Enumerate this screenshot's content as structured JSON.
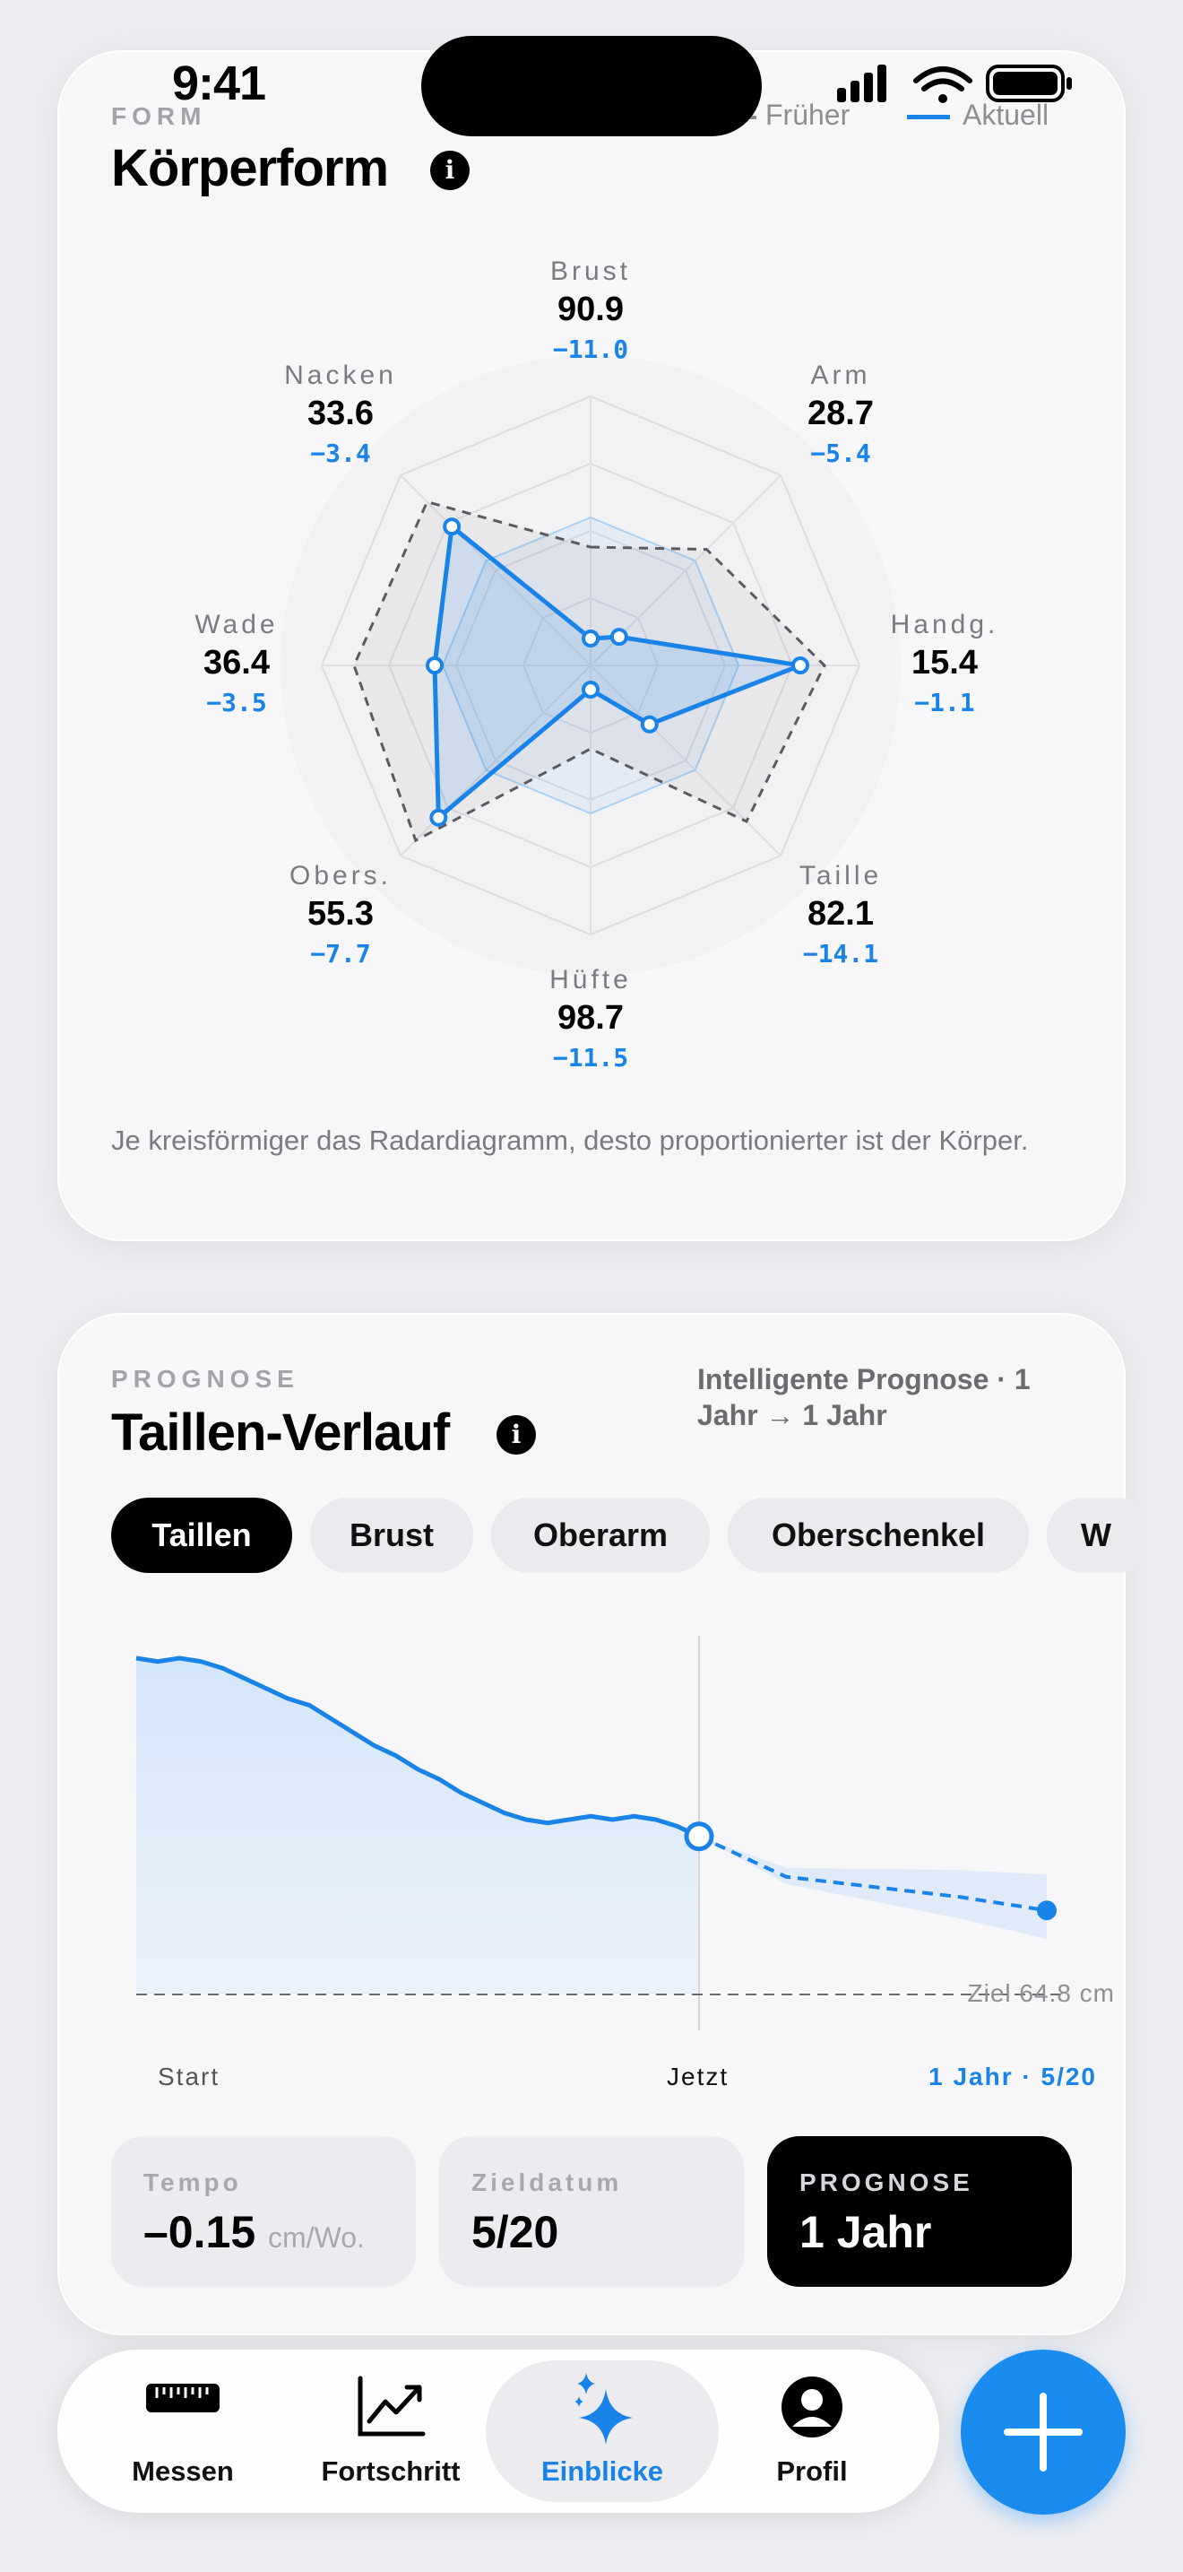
{
  "status": {
    "time": "9:41"
  },
  "form_card": {
    "eyebrow": "FORM",
    "title": "Körperform",
    "legend_before": "Früher",
    "legend_now": "Aktuell",
    "note": "Je kreisförmiger das Radardiagramm, desto proportionierter ist der Körper.",
    "radar": {
      "axes": [
        {
          "name": "Brust",
          "value": "90.9",
          "delta": "−11.0",
          "now": 0.1,
          "before": 0.44
        },
        {
          "name": "Arm",
          "value": "28.7",
          "delta": "−5.4",
          "now": 0.15,
          "before": 0.61
        },
        {
          "name": "Handg.",
          "value": "15.4",
          "delta": "−1.1",
          "now": 0.78,
          "before": 0.87
        },
        {
          "name": "Taille",
          "value": "82.1",
          "delta": "−14.1",
          "now": 0.31,
          "before": 0.82
        },
        {
          "name": "Hüfte",
          "value": "98.7",
          "delta": "−11.5",
          "now": 0.09,
          "before": 0.31
        },
        {
          "name": "Obers.",
          "value": "55.3",
          "delta": "−7.7",
          "now": 0.8,
          "before": 0.92
        },
        {
          "name": "Wade",
          "value": "36.4",
          "delta": "−3.5",
          "now": 0.58,
          "before": 0.88
        },
        {
          "name": "Nacken",
          "value": "33.6",
          "delta": "−3.4",
          "now": 0.73,
          "before": 0.86
        }
      ]
    }
  },
  "prognosis_card": {
    "eyebrow": "PROGNOSE",
    "title": "Taillen-Verlauf",
    "meta": "Intelligente Prognose · 1 Jahr → 1 Jahr",
    "chips": [
      "Taillen",
      "Brust",
      "Oberarm",
      "Oberschenkel",
      "W"
    ],
    "active_chip": 0,
    "goal_label": "Ziel 64.8 cm",
    "x_start": "Start",
    "x_now": "Jetzt",
    "x_end": "1 Jahr · 5/20",
    "stats": {
      "tempo_label": "Tempo",
      "tempo_value": "–0.15",
      "tempo_unit": "cm/Wo.",
      "date_label": "Zieldatum",
      "date_value": "5/20",
      "prog_label": "PROGNOSE",
      "prog_value": "1 Jahr"
    }
  },
  "chart_data": {
    "type": "line",
    "title": "Taillen-Verlauf",
    "series": [
      {
        "values": [
          1.0,
          0.99,
          1.0,
          0.99,
          0.97,
          0.94,
          0.91,
          0.88,
          0.86,
          0.82,
          0.78,
          0.74,
          0.71,
          0.67,
          0.64,
          0.6,
          0.57,
          0.54,
          0.52,
          0.51,
          0.52,
          0.53,
          0.52,
          0.53,
          0.52,
          0.5,
          0.47
        ]
      },
      {
        "values": [
          0.47,
          0.35,
          0.32,
          0.29,
          0.25
        ]
      }
    ],
    "goal_line": 64.8,
    "grid": false,
    "legend": "none"
  },
  "tabbar": {
    "tabs": [
      {
        "label": "Messen",
        "icon": "ruler-icon"
      },
      {
        "label": "Fortschritt",
        "icon": "chart-icon"
      },
      {
        "label": "Einblicke",
        "icon": "sparkle-icon"
      },
      {
        "label": "Profil",
        "icon": "person-icon"
      }
    ],
    "active": 2,
    "accent": "#1a83e8"
  }
}
